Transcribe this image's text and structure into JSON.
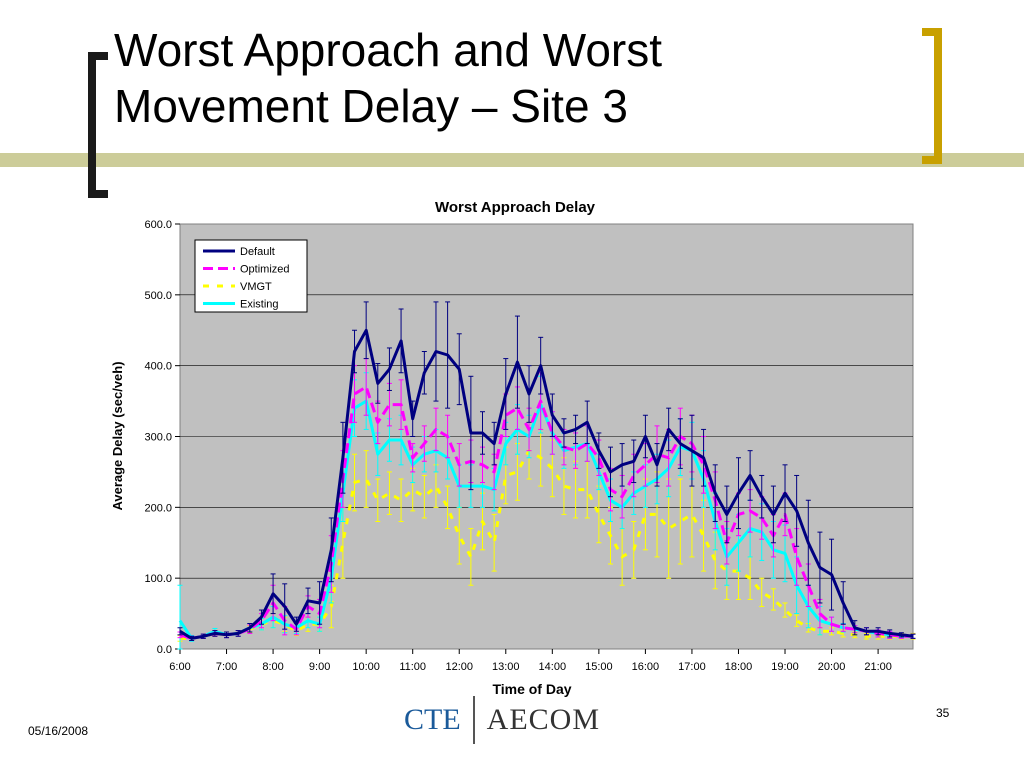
{
  "slide": {
    "title_line1": "Worst Approach and Worst",
    "title_line2": "Movement Delay – Site 3",
    "date": "05/16/2008",
    "page_number": "35",
    "logo_left": "CTE",
    "logo_right": "AECOM"
  },
  "chart_data": {
    "type": "line",
    "title": "Worst Approach Delay",
    "xlabel": "Time of Day",
    "ylabel": "Average Delay (sec/veh)",
    "ylim": [
      0,
      600
    ],
    "yticks": [
      "0.0",
      "100.0",
      "200.0",
      "300.0",
      "400.0",
      "500.0",
      "600.0"
    ],
    "xlim": [
      "6:00",
      "21:45"
    ],
    "xticks": [
      "6:00",
      "7:00",
      "8:00",
      "9:00",
      "10:00",
      "11:00",
      "12:00",
      "13:00",
      "14:00",
      "15:00",
      "16:00",
      "17:00",
      "18:00",
      "19:00",
      "20:00",
      "21:00"
    ],
    "x": [
      "6:00",
      "6:15",
      "6:30",
      "6:45",
      "7:00",
      "7:15",
      "7:30",
      "7:45",
      "8:00",
      "8:15",
      "8:30",
      "8:45",
      "9:00",
      "9:15",
      "9:30",
      "9:45",
      "10:00",
      "10:15",
      "10:30",
      "10:45",
      "11:00",
      "11:15",
      "11:30",
      "11:45",
      "12:00",
      "12:15",
      "12:30",
      "12:45",
      "13:00",
      "13:15",
      "13:30",
      "13:45",
      "14:00",
      "14:15",
      "14:30",
      "14:45",
      "15:00",
      "15:15",
      "15:30",
      "15:45",
      "16:00",
      "16:15",
      "16:30",
      "16:45",
      "17:00",
      "17:15",
      "17:30",
      "17:45",
      "18:00",
      "18:15",
      "18:30",
      "18:45",
      "19:00",
      "19:15",
      "19:30",
      "19:45",
      "20:00",
      "20:15",
      "20:30",
      "20:45",
      "21:00",
      "21:15",
      "21:30",
      "21:45"
    ],
    "grid": true,
    "legend_position": "top-left",
    "series": [
      {
        "name": "Default",
        "color": "#000080",
        "dash": "solid",
        "values": [
          25,
          15,
          18,
          22,
          20,
          22,
          30,
          45,
          78,
          60,
          35,
          68,
          65,
          140,
          270,
          420,
          450,
          375,
          395,
          435,
          325,
          390,
          420,
          415,
          395,
          305,
          305,
          290,
          360,
          405,
          360,
          400,
          330,
          305,
          310,
          320,
          280,
          250,
          260,
          265,
          300,
          260,
          310,
          290,
          280,
          270,
          220,
          190,
          220,
          245,
          215,
          190,
          220,
          195,
          150,
          115,
          105,
          65,
          30,
          25,
          25,
          22,
          20,
          18
        ],
        "err": [
          5,
          3,
          3,
          4,
          4,
          4,
          6,
          10,
          28,
          32,
          10,
          18,
          30,
          45,
          50,
          30,
          40,
          28,
          30,
          45,
          25,
          30,
          70,
          75,
          50,
          80,
          30,
          30,
          50,
          65,
          40,
          40,
          30,
          20,
          20,
          30,
          25,
          35,
          30,
          30,
          30,
          30,
          30,
          35,
          50,
          40,
          40,
          40,
          50,
          35,
          30,
          40,
          40,
          50,
          60,
          50,
          50,
          30,
          10,
          5,
          5,
          5,
          3,
          3
        ]
      },
      {
        "name": "Optimized",
        "color": "#ff00ff",
        "dash": "10,5",
        "values": [
          20,
          15,
          18,
          22,
          20,
          22,
          28,
          40,
          65,
          40,
          28,
          60,
          50,
          120,
          240,
          360,
          370,
          320,
          345,
          345,
          270,
          290,
          310,
          300,
          260,
          265,
          260,
          250,
          330,
          340,
          310,
          350,
          305,
          285,
          280,
          290,
          270,
          225,
          215,
          245,
          260,
          275,
          270,
          300,
          290,
          260,
          210,
          150,
          190,
          195,
          185,
          160,
          190,
          130,
          90,
          50,
          35,
          30,
          28,
          25,
          22,
          20,
          18,
          18
        ],
        "err": [
          4,
          3,
          3,
          4,
          4,
          4,
          6,
          10,
          25,
          20,
          8,
          15,
          20,
          40,
          40,
          40,
          40,
          30,
          30,
          35,
          20,
          25,
          30,
          30,
          30,
          30,
          25,
          25,
          30,
          30,
          30,
          40,
          30,
          25,
          25,
          25,
          25,
          30,
          30,
          30,
          30,
          40,
          40,
          40,
          40,
          40,
          40,
          30,
          30,
          30,
          30,
          30,
          30,
          40,
          30,
          20,
          10,
          5,
          5,
          5,
          5,
          5,
          3,
          3
        ]
      },
      {
        "name": "VMGT",
        "color": "#ffff00",
        "dash": "6,8",
        "values": [
          15,
          15,
          18,
          22,
          20,
          22,
          28,
          35,
          40,
          35,
          25,
          35,
          35,
          60,
          150,
          235,
          240,
          210,
          220,
          210,
          225,
          215,
          230,
          200,
          160,
          130,
          180,
          150,
          245,
          250,
          280,
          270,
          255,
          230,
          225,
          225,
          190,
          160,
          130,
          140,
          190,
          190,
          170,
          180,
          190,
          160,
          125,
          110,
          110,
          100,
          80,
          70,
          55,
          40,
          30,
          25,
          25,
          22,
          20,
          18,
          18,
          18,
          18,
          18
        ],
        "err": [
          4,
          3,
          3,
          4,
          4,
          4,
          5,
          8,
          10,
          10,
          6,
          10,
          10,
          30,
          50,
          40,
          40,
          30,
          30,
          30,
          30,
          30,
          30,
          30,
          40,
          40,
          40,
          40,
          40,
          40,
          40,
          40,
          40,
          40,
          40,
          40,
          40,
          40,
          40,
          40,
          50,
          60,
          70,
          60,
          60,
          50,
          40,
          40,
          40,
          30,
          20,
          15,
          10,
          8,
          6,
          5,
          5,
          5,
          4,
          4,
          4,
          4,
          4,
          4
        ]
      },
      {
        "name": "Existing",
        "color": "#00ffff",
        "dash": "solid",
        "values": [
          40,
          15,
          18,
          25,
          20,
          22,
          30,
          35,
          45,
          35,
          30,
          40,
          35,
          100,
          220,
          340,
          350,
          275,
          295,
          295,
          260,
          275,
          280,
          270,
          230,
          230,
          230,
          225,
          290,
          310,
          300,
          345,
          305,
          280,
          285,
          290,
          250,
          210,
          200,
          220,
          230,
          240,
          255,
          285,
          280,
          240,
          180,
          130,
          150,
          170,
          165,
          140,
          135,
          90,
          60,
          40,
          35,
          30,
          28,
          25,
          22,
          20,
          18,
          18
        ],
        "err": [
          50,
          4,
          3,
          4,
          4,
          4,
          6,
          8,
          15,
          12,
          8,
          10,
          10,
          35,
          40,
          40,
          40,
          30,
          30,
          35,
          25,
          25,
          30,
          30,
          30,
          30,
          30,
          30,
          30,
          35,
          30,
          40,
          30,
          25,
          25,
          25,
          25,
          30,
          30,
          30,
          30,
          35,
          40,
          40,
          40,
          40,
          40,
          40,
          40,
          40,
          40,
          40,
          40,
          40,
          30,
          20,
          10,
          6,
          5,
          5,
          5,
          5,
          3,
          3
        ]
      }
    ]
  }
}
